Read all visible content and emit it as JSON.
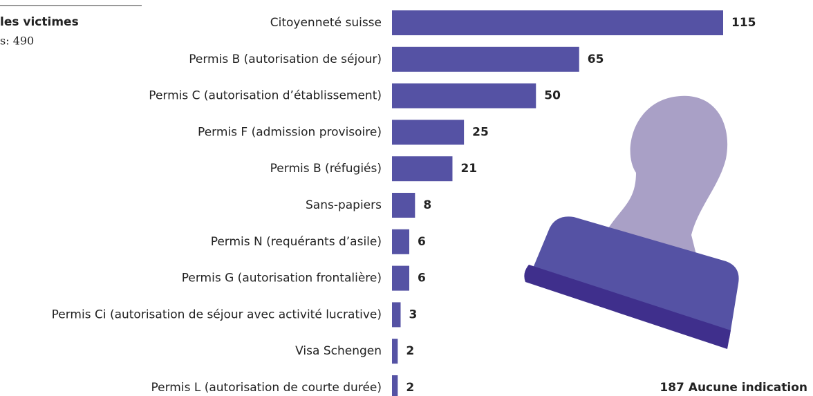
{
  "chart_data": {
    "type": "bar",
    "orientation": "horizontal",
    "title": "les victimes",
    "subtitle": "s: 490",
    "categories": [
      "Citoyenneté suisse",
      "Permis B (autorisation de séjour)",
      "Permis C (autorisation d’établissement)",
      "Permis F (admission provisoire)",
      "Permis B (réfugiés)",
      "Sans-papiers",
      "Permis N (requérants d’asile)",
      "Permis G (autorisation frontalière)",
      "Permis Ci (autorisation de séjour avec activité lucrative)",
      "Visa Schengen",
      "Permis L (autorisation de courte durée)"
    ],
    "values": [
      115,
      65,
      50,
      25,
      21,
      8,
      6,
      6,
      3,
      2,
      2
    ],
    "color": "#5552a4",
    "annotation": "187 Aucune indication"
  }
}
